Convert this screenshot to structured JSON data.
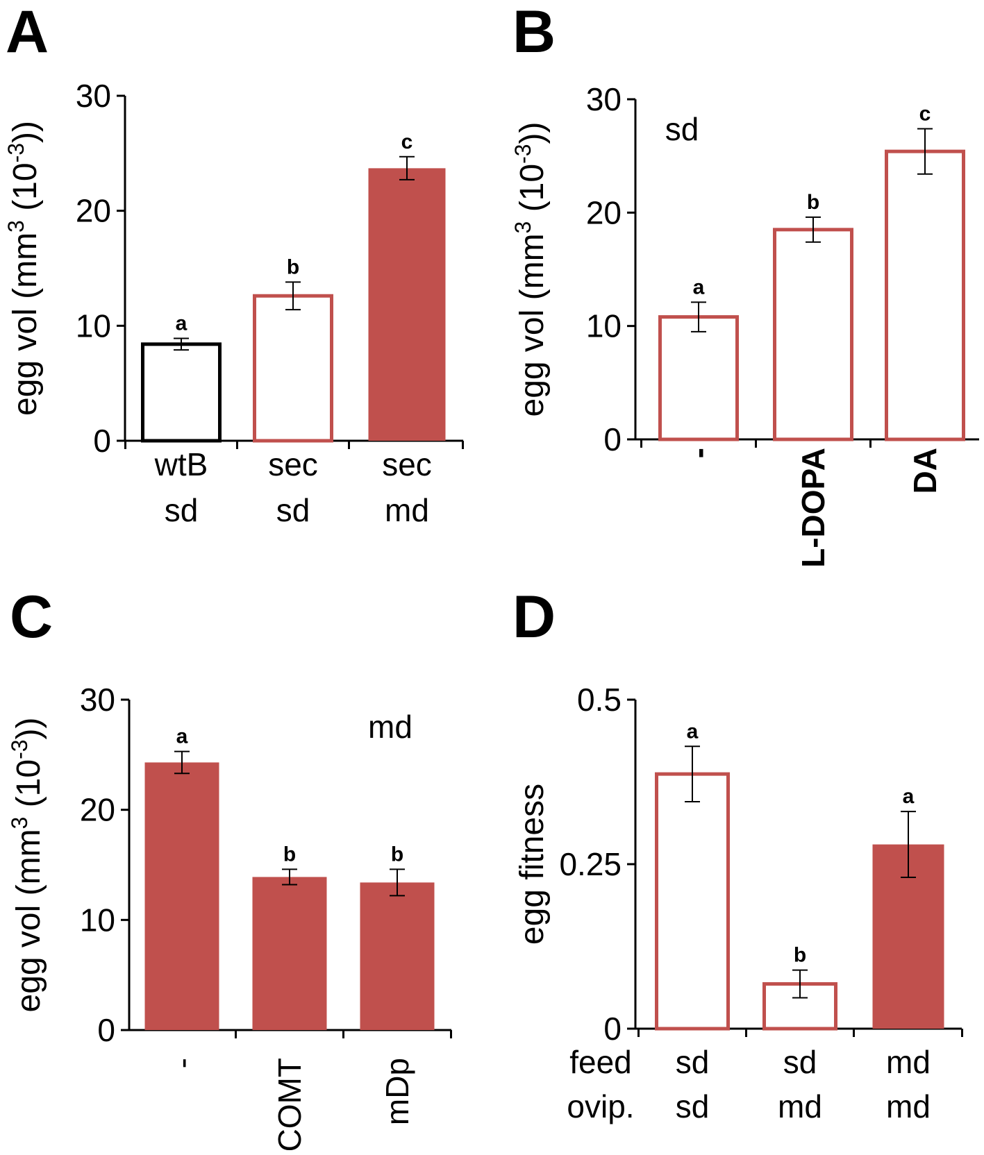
{
  "chart_data": [
    {
      "type": "bar",
      "title": "A",
      "ylabel": [
        "egg vol (mm",
        "3",
        " (10",
        "-3",
        "))"
      ],
      "categories": [
        [
          "wtB",
          "sd"
        ],
        [
          "sec",
          "sd"
        ],
        [
          "sec",
          "md"
        ]
      ],
      "values": [
        8.4,
        12.6,
        23.7
      ],
      "errors": [
        0.5,
        1.2,
        1.0
      ],
      "letters": [
        "a",
        "b",
        "c"
      ],
      "colors": [
        "#000000",
        "#c0504d",
        "#c0504d"
      ],
      "filled": [
        false,
        false,
        true
      ],
      "ylim": [
        0,
        30
      ],
      "yticks": [
        0,
        10,
        20,
        30
      ]
    },
    {
      "type": "bar",
      "title": "B",
      "ylabel": [
        "egg vol (mm",
        "3",
        " (10",
        "-3",
        "))"
      ],
      "annotation": "sd",
      "categories": [
        "-",
        "L-DOPA",
        "DA"
      ],
      "values": [
        10.8,
        18.5,
        25.4
      ],
      "errors": [
        1.3,
        1.1,
        2.0
      ],
      "letters": [
        "a",
        "b",
        "c"
      ],
      "colors": [
        "#c0504d",
        "#c0504d",
        "#c0504d"
      ],
      "filled": [
        false,
        false,
        false
      ],
      "ylim": [
        0,
        30
      ],
      "yticks": [
        0,
        10,
        20,
        30
      ]
    },
    {
      "type": "bar",
      "title": "C",
      "ylabel": [
        "egg vol (mm",
        "3",
        " (10",
        "-3",
        "))"
      ],
      "annotation": "md",
      "categories": [
        "-",
        "COMT",
        "mDp"
      ],
      "values": [
        24.3,
        13.9,
        13.4
      ],
      "errors": [
        1.0,
        0.7,
        1.2
      ],
      "letters": [
        "a",
        "b",
        "b"
      ],
      "colors": [
        "#c0504d",
        "#c0504d",
        "#c0504d"
      ],
      "filled": [
        true,
        true,
        true
      ],
      "ylim": [
        0,
        30
      ],
      "yticks": [
        0,
        10,
        20,
        30
      ]
    },
    {
      "type": "bar",
      "title": "D",
      "ylabel": [
        "egg fitness"
      ],
      "row_labels": [
        "feed",
        "ovip."
      ],
      "categories": [
        [
          "sd",
          "sd"
        ],
        [
          "sd",
          "md"
        ],
        [
          "md",
          "md"
        ]
      ],
      "values": [
        0.387,
        0.068,
        0.28
      ],
      "errors": [
        0.042,
        0.021,
        0.05
      ],
      "letters": [
        "a",
        "b",
        "a"
      ],
      "colors": [
        "#c0504d",
        "#c0504d",
        "#c0504d"
      ],
      "filled": [
        false,
        false,
        true
      ],
      "ylim": [
        0,
        0.5
      ],
      "yticks": [
        0,
        0.25,
        0.5
      ]
    }
  ]
}
